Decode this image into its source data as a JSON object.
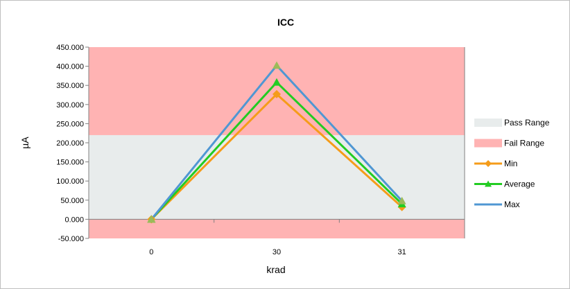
{
  "chart_data": {
    "type": "line",
    "title": "ICC",
    "xlabel": "krad",
    "ylabel": "µA",
    "categories": [
      "0",
      "30",
      "31"
    ],
    "ylim": [
      -50,
      450
    ],
    "y_ticks": [
      "-50.000",
      "0.000",
      "50.000",
      "100.000",
      "150.000",
      "200.000",
      "250.000",
      "300.000",
      "350.000",
      "400.000",
      "450.000"
    ],
    "bands": [
      {
        "name": "Pass Range",
        "from": 0,
        "to": 220,
        "color": "#e8ecec"
      },
      {
        "name": "Fail Range",
        "from": 220,
        "to": 450,
        "color": "#ffb3b3"
      },
      {
        "name": "Fail Range",
        "from": -50,
        "to": 0,
        "color": "#ffb3b3"
      }
    ],
    "series": [
      {
        "name": "Min",
        "values": [
          0,
          327,
          32
        ],
        "color": "#f59c1a",
        "marker": "diamond"
      },
      {
        "name": "Average",
        "values": [
          0,
          358,
          40
        ],
        "color": "#22cc22",
        "marker": "triangle"
      },
      {
        "name": "Max",
        "values": [
          0,
          402,
          48
        ],
        "color": "#4f97d3",
        "marker": "triangle",
        "marker_color": "#9bbb59"
      }
    ],
    "legend_position": "right",
    "legend": [
      {
        "label": "Pass Range",
        "kind": "patch",
        "color": "#e8ecec"
      },
      {
        "label": "Fail Range",
        "kind": "patch",
        "color": "#ffb3b3"
      },
      {
        "label": "Min",
        "kind": "line",
        "color": "#f59c1a",
        "marker": "diamond"
      },
      {
        "label": "Average",
        "kind": "line",
        "color": "#22cc22",
        "marker": "triangle"
      },
      {
        "label": "Max",
        "kind": "line",
        "color": "#4f97d3",
        "marker": "none"
      }
    ]
  }
}
